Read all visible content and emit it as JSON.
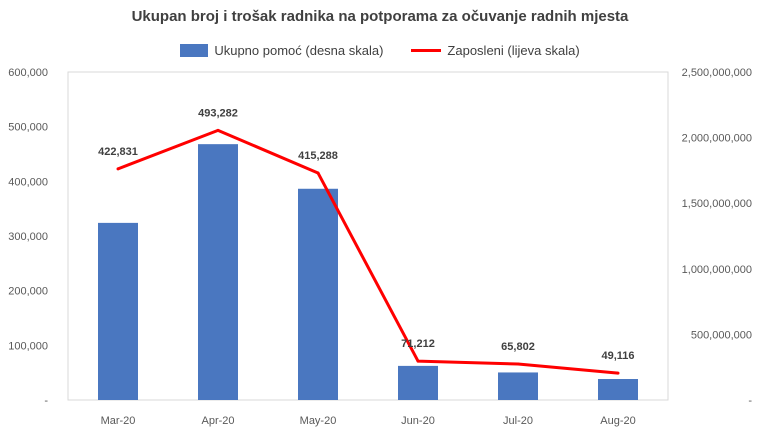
{
  "chart_data": {
    "type": "bar",
    "title": "Ukupan broj i trošak radnika na potporama za očuvanje radnih mjesta",
    "categories": [
      "Mar-20",
      "Apr-20",
      "May-20",
      "Jun-20",
      "Jul-20",
      "Aug-20"
    ],
    "series": [
      {
        "name": "Ukupno pomoć (desna skala)",
        "type": "bar",
        "axis": "right",
        "color": "#4a77c0",
        "values": [
          1350000000,
          1950000000,
          1610000000,
          260000000,
          210000000,
          160000000
        ]
      },
      {
        "name": "Zaposleni (lijeva skala)",
        "type": "line",
        "axis": "left",
        "color": "#ff0000",
        "values": [
          422831,
          493282,
          415288,
          71212,
          65802,
          49116
        ],
        "data_labels": [
          "422,831",
          "493,282",
          "415,288",
          "71,212",
          "65,802",
          "49,116"
        ]
      }
    ],
    "left_axis": {
      "ylim": [
        0,
        600000
      ],
      "ticks": [
        0,
        100000,
        200000,
        300000,
        400000,
        500000,
        600000
      ],
      "tick_labels": [
        "-",
        "100,000",
        "200,000",
        "300,000",
        "400,000",
        "500,000",
        "600,000"
      ]
    },
    "right_axis": {
      "ylim": [
        0,
        2500000000
      ],
      "ticks": [
        0,
        500000000,
        1000000000,
        1500000000,
        2000000000,
        2500000000
      ],
      "tick_labels": [
        "-",
        "500,000,000",
        "1,000,000,000",
        "1,500,000,000",
        "2,000,000,000",
        "2,500,000,000"
      ]
    },
    "grid": false,
    "legend_position": "top"
  }
}
